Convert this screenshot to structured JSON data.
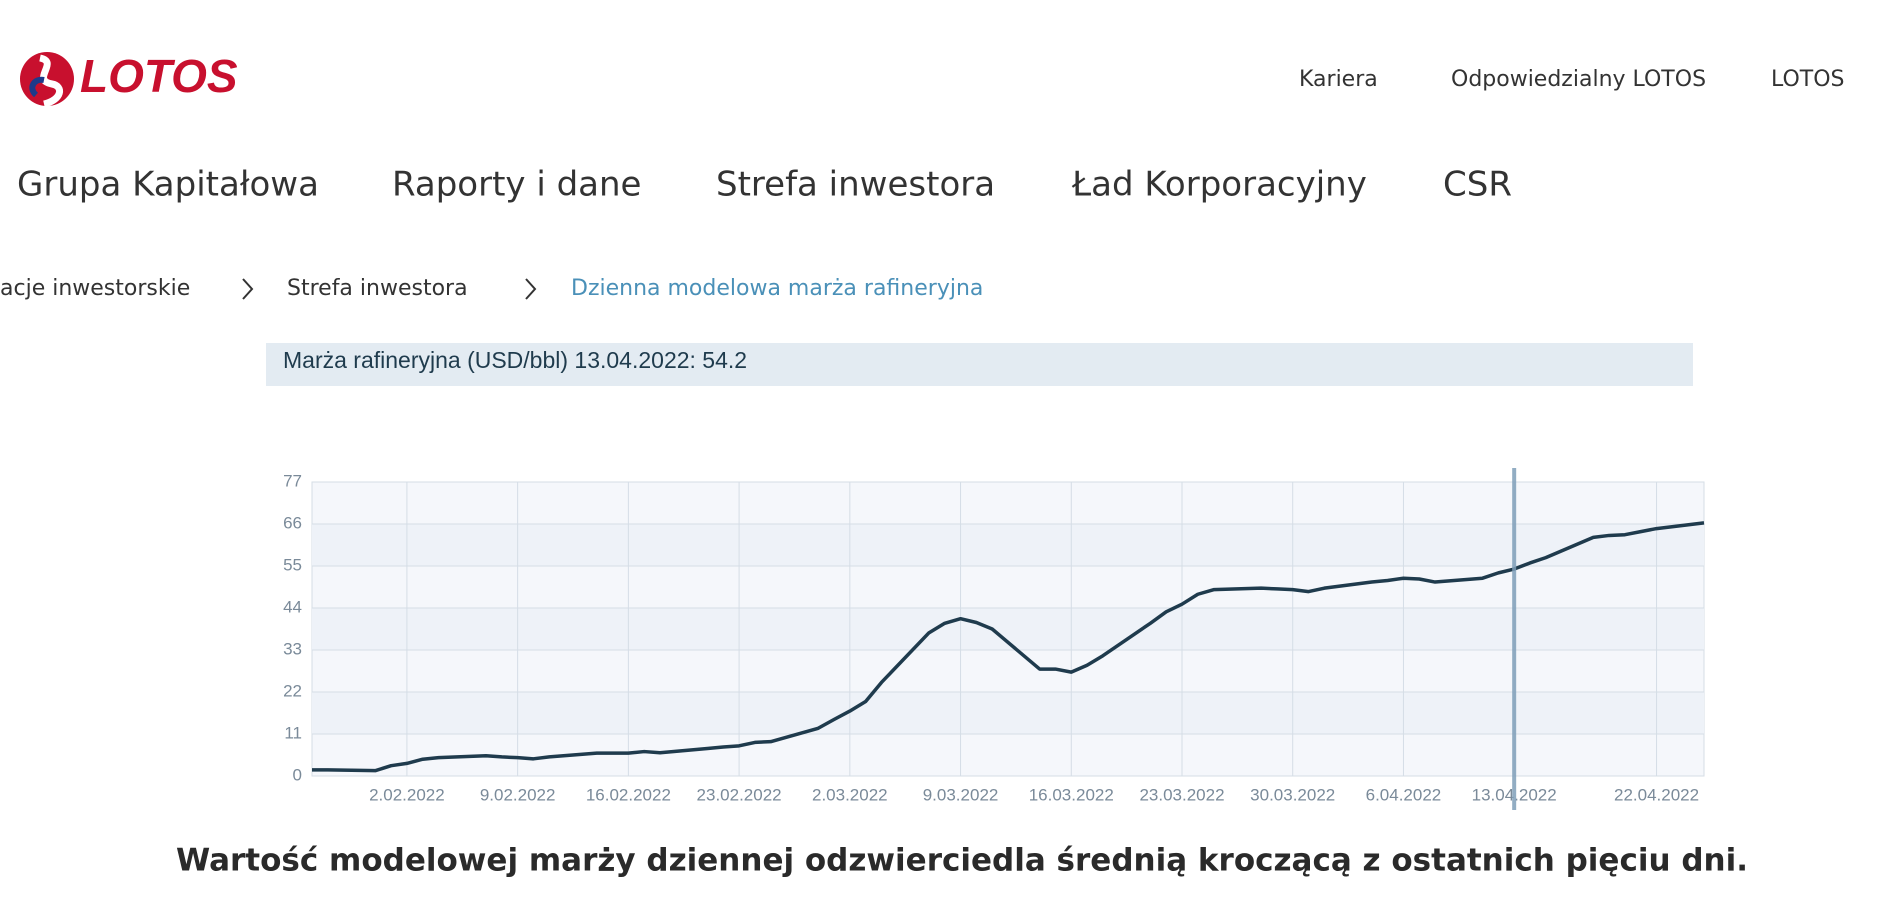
{
  "header": {
    "logo": "LOTOS",
    "top_nav": [
      "Kariera",
      "Odpowiedzialny LOTOS",
      "LOTOS"
    ],
    "main_nav": [
      "Grupa Kapitałowa",
      "Raporty i dane",
      "Strefa inwestora",
      "Ład Korporacyjny",
      "CSR"
    ]
  },
  "breadcrumb": [
    "acje inwestorskie",
    "Strefa inwestora",
    "Dzienna modelowa marża rafineryjna"
  ],
  "chart_data": {
    "type": "line",
    "tooltip": "Marża rafineryjna (USD/bbl) 13.04.2022: 54.2",
    "highlight_x": "13.04.2022",
    "color": "#1f3b4d",
    "x": [
      "27.01.2022",
      "28.01.2022",
      "31.01.2022",
      "1.02.2022",
      "2.02.2022",
      "3.02.2022",
      "4.02.2022",
      "7.02.2022",
      "8.02.2022",
      "9.02.2022",
      "10.02.2022",
      "11.02.2022",
      "14.02.2022",
      "15.02.2022",
      "16.02.2022",
      "17.02.2022",
      "18.02.2022",
      "21.02.2022",
      "22.02.2022",
      "23.02.2022",
      "24.02.2022",
      "25.02.2022",
      "28.02.2022",
      "1.03.2022",
      "2.03.2022",
      "3.03.2022",
      "4.03.2022",
      "7.03.2022",
      "8.03.2022",
      "9.03.2022",
      "10.03.2022",
      "11.03.2022",
      "14.03.2022",
      "15.03.2022",
      "16.03.2022",
      "17.03.2022",
      "18.03.2022",
      "21.03.2022",
      "22.03.2022",
      "23.03.2022",
      "24.03.2022",
      "25.03.2022",
      "28.03.2022",
      "29.03.2022",
      "30.03.2022",
      "31.03.2022",
      "1.04.2022",
      "4.04.2022",
      "5.04.2022",
      "6.04.2022",
      "7.04.2022",
      "8.04.2022",
      "11.04.2022",
      "12.04.2022",
      "13.04.2022",
      "14.04.2022",
      "15.04.2022",
      "18.04.2022",
      "19.04.2022",
      "20.04.2022",
      "21.04.2022",
      "22.04.2022",
      "25.04.2022"
    ],
    "values": [
      1.6,
      1.6,
      1.4,
      2.7,
      3.3,
      4.4,
      4.8,
      5.3,
      5.0,
      4.8,
      4.5,
      5.0,
      6.0,
      6.0,
      6.0,
      6.4,
      6.1,
      7.2,
      7.6,
      7.9,
      8.8,
      9.0,
      12.5,
      14.8,
      17.0,
      19.5,
      24.5,
      37.5,
      40.0,
      41.2,
      40.2,
      38.5,
      28.0,
      28.0,
      27.2,
      29.0,
      31.5,
      40.0,
      43.0,
      45.0,
      47.6,
      48.8,
      49.2,
      49.0,
      48.8,
      48.3,
      49.2,
      50.8,
      51.2,
      51.8,
      51.6,
      50.8,
      51.8,
      53.2,
      54.2,
      55.8,
      57.2,
      62.5,
      63.0,
      63.2,
      64.0,
      64.8,
      66.3
    ],
    "xlim": [
      "27.01.2022",
      "25.04.2022"
    ],
    "xticks": [
      "2.02.2022",
      "9.02.2022",
      "16.02.2022",
      "23.02.2022",
      "2.03.2022",
      "9.03.2022",
      "16.03.2022",
      "23.03.2022",
      "30.03.2022",
      "6.04.2022",
      "13.04.2022",
      "22.04.2022"
    ],
    "ylim": [
      0,
      77
    ],
    "yticks": [
      0,
      11,
      22,
      33,
      44,
      55,
      66,
      77
    ],
    "grid": true,
    "note": "Wartość modelowej marży dziennej odzwierciedla średnią kroczącą z ostatnich pięciu dni."
  }
}
